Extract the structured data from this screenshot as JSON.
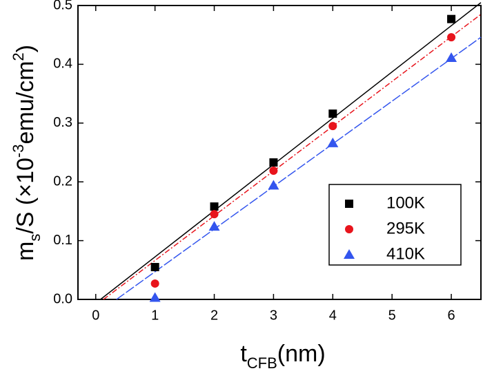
{
  "chart_data": {
    "type": "scatter",
    "x_label": [
      "t",
      "CFB",
      "(nm)"
    ],
    "y_label": [
      "m",
      "s",
      "/S (×10",
      "-3",
      "emu/cm",
      "2",
      ")"
    ],
    "xlim": [
      -0.3,
      6.5
    ],
    "ylim": [
      0,
      0.5
    ],
    "xticks": [
      0,
      1,
      2,
      3,
      4,
      5,
      6
    ],
    "yticks": [
      {
        "value": 0,
        "label": "0.0"
      },
      0.1,
      0.2,
      0.3,
      0.4,
      0.5
    ],
    "x": [
      1,
      2,
      3,
      4,
      6
    ],
    "series": [
      {
        "name": "100K",
        "color": "#000000",
        "marker": "square",
        "values": [
          0.055,
          0.158,
          0.233,
          0.316,
          0.477
        ],
        "fit": {
          "x": [
            0.08,
            6.5
          ],
          "values": [
            0,
            0.505
          ],
          "dash": "none"
        }
      },
      {
        "name": "295K",
        "color": "#e8141c",
        "marker": "circle",
        "values": [
          0.027,
          0.145,
          0.219,
          0.295,
          0.446
        ],
        "fit": {
          "x": [
            0.13,
            6.5
          ],
          "values": [
            0,
            0.485
          ],
          "dash": "8 3 2 3"
        }
      },
      {
        "name": "410K",
        "color": "#3355ee",
        "marker": "triangle",
        "values": [
          0.003,
          0.124,
          0.194,
          0.266,
          0.411
        ],
        "fit": {
          "x": [
            0.35,
            6.5
          ],
          "values": [
            0,
            0.446
          ],
          "dash": "14 3"
        }
      }
    ]
  }
}
